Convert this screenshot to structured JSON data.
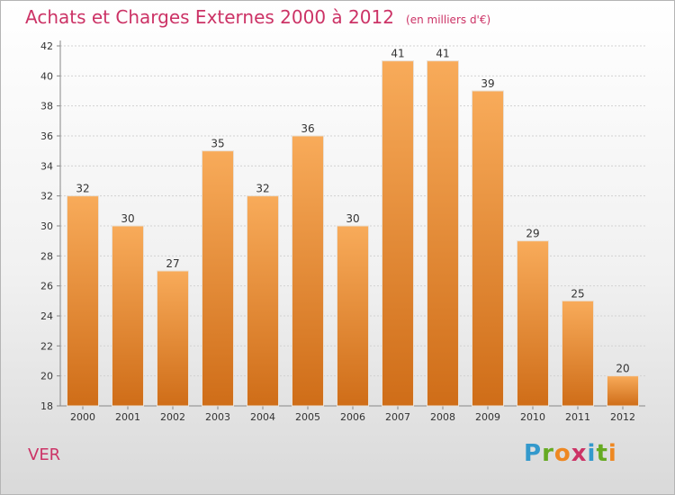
{
  "header": {
    "title": "Achats et Charges Externes 2000 à 2012",
    "unit": "(en milliers d'€)"
  },
  "footer": {
    "commune": "VER",
    "logo": {
      "letters": [
        "P",
        "r",
        "o",
        "x",
        "i",
        "t",
        "i"
      ],
      "colors": [
        "#3399cc",
        "#66aa22",
        "#ee8822",
        "#cc3366",
        "#3399cc",
        "#66aa22",
        "#ee8822"
      ]
    }
  },
  "colors": {
    "bar_light": "#f8ab5a",
    "bar_dark": "#cf6d18",
    "title": "#cc3366"
  },
  "chart_data": {
    "type": "bar",
    "title": "Achats et Charges Externes 2000 à 2012",
    "xlabel": "",
    "ylabel": "",
    "categories": [
      "2000",
      "2001",
      "2002",
      "2003",
      "2004",
      "2005",
      "2006",
      "2007",
      "2008",
      "2009",
      "2010",
      "2011",
      "2012"
    ],
    "values": [
      32,
      30,
      27,
      35,
      32,
      36,
      30,
      41,
      41,
      39,
      29,
      25,
      20
    ],
    "ylim": [
      18,
      42
    ],
    "yticks": [
      18,
      20,
      22,
      24,
      26,
      28,
      30,
      32,
      34,
      36,
      38,
      40,
      42
    ],
    "grid": true,
    "legend": "none"
  }
}
